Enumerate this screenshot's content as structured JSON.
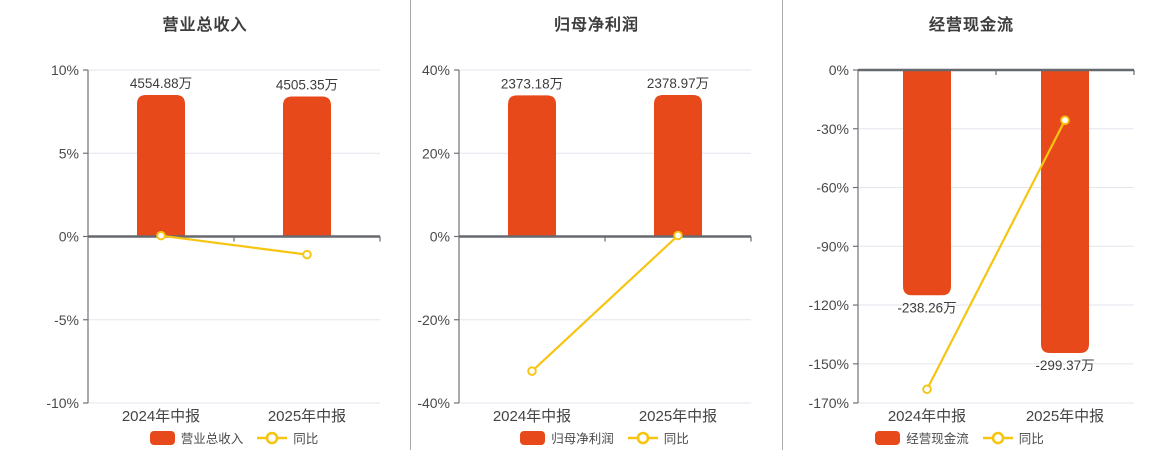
{
  "colors": {
    "bar": "#E8491A",
    "line": "#F5C512",
    "grid": "#E4E6EE",
    "zero_line": "#66696E",
    "axis_line": "#6F7277",
    "tick_text": "#4A4A4A",
    "category_text": "#444444",
    "value_text": "#3D3D3D",
    "title_text": "#3C3C3C",
    "separator": "#A6A8AC",
    "background": "#FFFFFF"
  },
  "chart_data": [
    {
      "type": "bar",
      "title": "营业总收入",
      "categories": [
        "2024年中报",
        "2025年中报"
      ],
      "bar_series": {
        "name": "营业总收入",
        "unit": "万",
        "values": [
          4554.88,
          4505.35
        ],
        "labels": [
          "4554.88万",
          "4505.35万"
        ],
        "label_position": "above"
      },
      "line_series": {
        "name": "同比",
        "unit": "%",
        "values_pct": [
          0.05,
          -1.09
        ]
      },
      "y_axis": {
        "unit": "%",
        "min": -10,
        "max": 10,
        "ticks": [
          10,
          5,
          0,
          -5,
          -10
        ],
        "tick_labels": [
          "10%",
          "5%",
          "0%",
          "-5%",
          "-10%"
        ]
      },
      "grid": true,
      "legend_position": "bottom",
      "legend": [
        "营业总收入",
        "同比"
      ]
    },
    {
      "type": "bar",
      "title": "归母净利润",
      "categories": [
        "2024年中报",
        "2025年中报"
      ],
      "bar_series": {
        "name": "归母净利润",
        "unit": "万",
        "values": [
          2373.18,
          2378.97
        ],
        "labels": [
          "2373.18万",
          "2378.97万"
        ],
        "label_position": "above"
      },
      "line_series": {
        "name": "同比",
        "unit": "%",
        "values_pct": [
          -32.35,
          0.24
        ]
      },
      "y_axis": {
        "unit": "%",
        "min": -40,
        "max": 40,
        "ticks": [
          40,
          20,
          0,
          -20,
          -40
        ],
        "tick_labels": [
          "40%",
          "20%",
          "0%",
          "-20%",
          "-40%"
        ]
      },
      "grid": true,
      "legend_position": "bottom",
      "legend": [
        "归母净利润",
        "同比"
      ]
    },
    {
      "type": "bar",
      "title": "经营现金流",
      "categories": [
        "2024年中报",
        "2025年中报"
      ],
      "bar_series": {
        "name": "经营现金流",
        "unit": "万",
        "values": [
          -238.26,
          -299.37
        ],
        "labels": [
          "-238.26万",
          "-299.37万"
        ],
        "label_position": "below"
      },
      "line_series": {
        "name": "同比",
        "unit": "%",
        "values_pct": [
          -163,
          -25.65
        ]
      },
      "y_axis": {
        "unit": "%",
        "min": -170,
        "max": 0,
        "ticks": [
          0,
          -30,
          -60,
          -90,
          -120,
          -150,
          -170
        ],
        "tick_labels": [
          "0%",
          "-30%",
          "-60%",
          "-90%",
          "-120%",
          "-150%",
          "-170%"
        ]
      },
      "grid": true,
      "legend_position": "bottom",
      "legend": [
        "经营现金流",
        "同比"
      ]
    }
  ]
}
